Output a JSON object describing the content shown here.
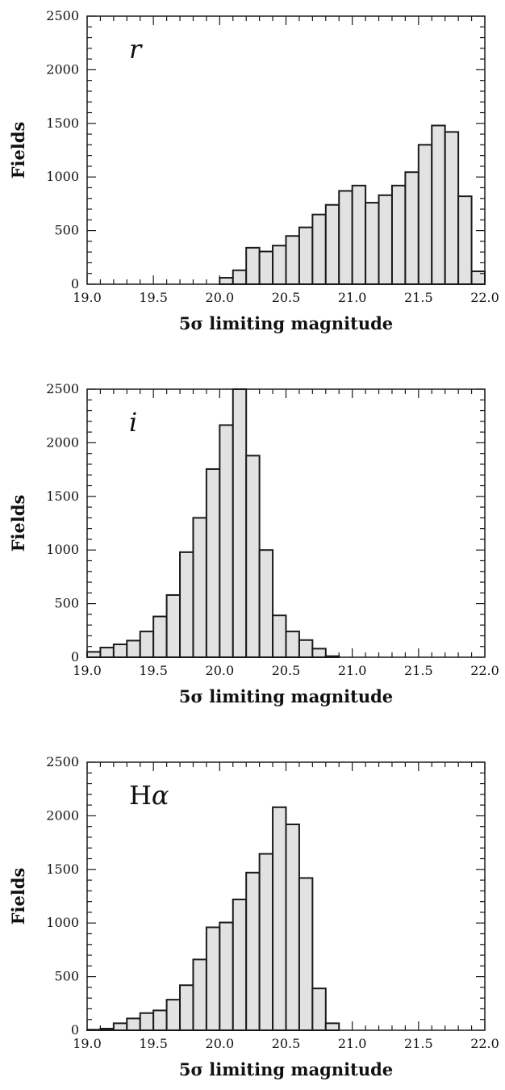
{
  "chart_data": [
    {
      "type": "bar",
      "panel_label": "r",
      "xlabel": "5σ limiting magnitude",
      "ylabel": "Fields",
      "xlim": [
        19.0,
        22.0
      ],
      "ylim": [
        0,
        2500
      ],
      "xticks": [
        "19.0",
        "19.5",
        "20.0",
        "20.5",
        "21.0",
        "21.5",
        "22.0"
      ],
      "yticks": [
        "0",
        "500",
        "1000",
        "1500",
        "2000",
        "2500"
      ],
      "bin_width": 0.1,
      "bin_starts": [
        20.0,
        20.1,
        20.2,
        20.3,
        20.4,
        20.5,
        20.6,
        20.7,
        20.8,
        20.9,
        21.0,
        21.1,
        21.2,
        21.3,
        21.4,
        21.5,
        21.6,
        21.7,
        21.8,
        21.9
      ],
      "values": [
        60,
        130,
        340,
        305,
        360,
        450,
        530,
        650,
        740,
        870,
        920,
        760,
        830,
        920,
        1045,
        1300,
        1480,
        1420,
        820,
        120
      ]
    },
    {
      "type": "bar",
      "panel_label": "i",
      "xlabel": "5σ limiting magnitude",
      "ylabel": "Fields",
      "xlim": [
        19.0,
        22.0
      ],
      "ylim": [
        0,
        2500
      ],
      "xticks": [
        "19.0",
        "19.5",
        "20.0",
        "20.5",
        "21.0",
        "21.5",
        "22.0"
      ],
      "yticks": [
        "0",
        "500",
        "1000",
        "1500",
        "2000",
        "2500"
      ],
      "bin_width": 0.1,
      "bin_starts": [
        19.0,
        19.1,
        19.2,
        19.3,
        19.4,
        19.5,
        19.6,
        19.7,
        19.8,
        19.9,
        20.0,
        20.1,
        20.2,
        20.3,
        20.4,
        20.5,
        20.6,
        20.7,
        20.8
      ],
      "values": [
        50,
        90,
        120,
        155,
        240,
        380,
        580,
        980,
        1300,
        1755,
        2165,
        2500,
        1880,
        1000,
        390,
        240,
        160,
        80,
        10
      ]
    },
    {
      "type": "bar",
      "panel_label": "Hα",
      "xlabel": "5σ limiting magnitude",
      "ylabel": "Fields",
      "xlim": [
        19.0,
        22.0
      ],
      "ylim": [
        0,
        2500
      ],
      "xticks": [
        "19.0",
        "19.5",
        "20.0",
        "20.5",
        "21.0",
        "21.5",
        "22.0"
      ],
      "yticks": [
        "0",
        "500",
        "1000",
        "1500",
        "2000",
        "2500"
      ],
      "bin_width": 0.1,
      "bin_starts": [
        19.0,
        19.1,
        19.2,
        19.3,
        19.4,
        19.5,
        19.6,
        19.7,
        19.8,
        19.9,
        20.0,
        20.1,
        20.2,
        20.3,
        20.4,
        20.5,
        20.6,
        20.7,
        20.8
      ],
      "values": [
        5,
        15,
        65,
        110,
        160,
        185,
        285,
        420,
        660,
        960,
        1005,
        1220,
        1470,
        1645,
        2080,
        1920,
        1420,
        390,
        65
      ]
    }
  ],
  "style": {
    "bar_fill": "#e2e2e2",
    "bar_stroke": "#1a1a1a",
    "axis_color": "#1a1a1a"
  }
}
